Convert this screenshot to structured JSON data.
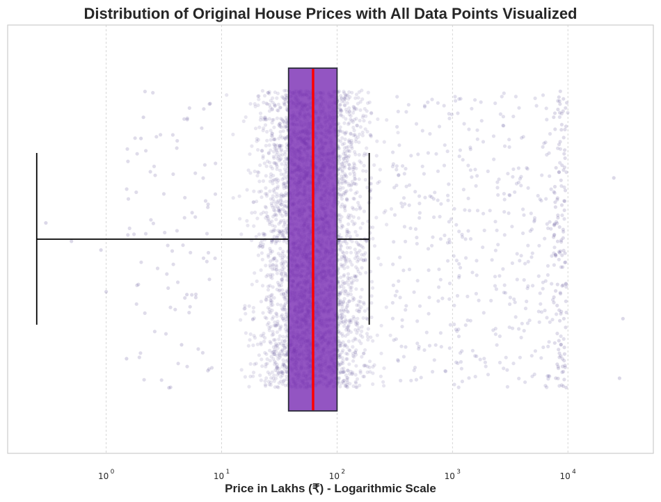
{
  "chart_data": {
    "type": "box",
    "title": "Distribution of Original House Prices with All Data Points Visualized",
    "xlabel": "Price in Lakhs (₹) - Logarithmic Scale",
    "ylabel": "",
    "xscale": "log",
    "xlim": [
      0.14,
      55000
    ],
    "xticks": [
      {
        "value": 1,
        "base": "10",
        "exp": "0"
      },
      {
        "value": 10,
        "base": "10",
        "exp": "1"
      },
      {
        "value": 100,
        "base": "10",
        "exp": "2"
      },
      {
        "value": 1000,
        "base": "10",
        "exp": "3"
      },
      {
        "value": 10000,
        "base": "10",
        "exp": "4"
      }
    ],
    "grid": {
      "x": true,
      "y": false
    },
    "box": {
      "whisker_low": 0.25,
      "q1": 38,
      "median": 62,
      "q3": 100,
      "whisker_high": 190
    },
    "points": {
      "description_count": "thousands of jittered observations",
      "dense_range": [
        8,
        350
      ],
      "sparse_range": [
        0.3,
        30000
      ],
      "visible_outliers": [
        0.3,
        0.5,
        0.9,
        1.0,
        1.5,
        2.0,
        2.1,
        3.5,
        4.5,
        5.0,
        25000,
        28000,
        30000
      ]
    },
    "colors": {
      "box_fill": "#7b2fb5",
      "box_edge": "#2b2b3b",
      "median": "#ff0000",
      "whisker": "#000000",
      "points": "#4b3c8c",
      "grid": "#cccccc",
      "frame": "#cccccc"
    }
  }
}
